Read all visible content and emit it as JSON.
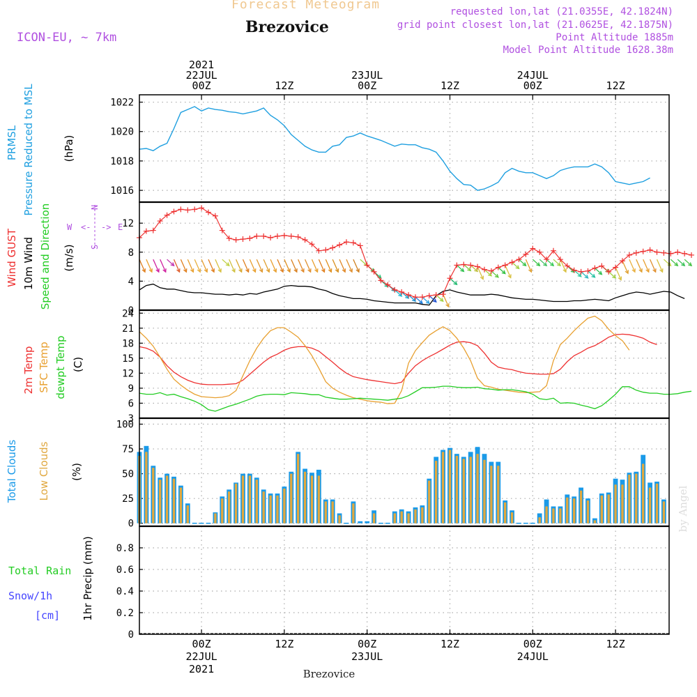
{
  "header": {
    "product": "Forecast Meteogram",
    "location": "Brezovice",
    "model": "ICON-EU, ~ 7km",
    "requested": "requested lon,lat (21.0355E, 42.1824N)",
    "gridpoint": "grid point closest lon,lat (21.0625E, 42.1875N)",
    "point_alt": "Point Altitude 1885m",
    "model_alt": "Model Point Altitude 1628.38m"
  },
  "footer": {
    "location": "Brezovice",
    "credit": "by Angel"
  },
  "colors": {
    "pressure": "#1e9fe0",
    "gust": "#ee3030",
    "wind": "#000000",
    "t2m": "#ee3030",
    "sfc": "#e8a030",
    "dewpt": "#22cc22",
    "total_clouds": "#1a9ae8",
    "low_clouds": "#e0a840",
    "rain": "#22cc22",
    "snow": "#4444ff",
    "header_product": "#f0c890",
    "header_info": "#b050e0"
  },
  "chart_data": {
    "type": "line",
    "x_axis": {
      "start": "21 JUL 2021 15Z",
      "end": "24 JUL 2021 17Z",
      "step_hours": 1,
      "top_ticks": [
        {
          "hour": 9,
          "label": [
            "2021",
            "22JUL",
            "00Z"
          ]
        },
        {
          "hour": 21,
          "label": [
            "12Z"
          ]
        },
        {
          "hour": 33,
          "label": [
            "23JUL",
            "00Z"
          ]
        },
        {
          "hour": 45,
          "label": [
            "12Z"
          ]
        },
        {
          "hour": 57,
          "label": [
            "24JUL",
            "00Z"
          ]
        },
        {
          "hour": 69,
          "label": [
            "12Z"
          ]
        }
      ],
      "bottom_ticks": [
        {
          "hour": 9,
          "label": [
            "00Z",
            "22JUL",
            "2021"
          ]
        },
        {
          "hour": 21,
          "label": [
            "12Z"
          ]
        },
        {
          "hour": 33,
          "label": [
            "00Z",
            "23JUL"
          ]
        },
        {
          "hour": 45,
          "label": [
            "12Z"
          ]
        },
        {
          "hour": 57,
          "label": [
            "00Z",
            "24JUL"
          ]
        },
        {
          "hour": 69,
          "label": [
            "12Z"
          ]
        }
      ]
    },
    "panels": [
      {
        "id": "pressure",
        "labels": [
          "PRMSL",
          "Pressure Reduced to MSL"
        ],
        "unit": "(hPa)",
        "ylim": [
          1015.2,
          1022.5
        ],
        "yticks": [
          1016,
          1018,
          1020,
          1022
        ],
        "series": [
          {
            "name": "PRMSL",
            "values": [
              1018.8,
              1018.85,
              1018.7,
              1019.0,
              1019.2,
              1020.2,
              1021.3,
              1021.5,
              1021.7,
              1021.4,
              1021.6,
              1021.5,
              1021.45,
              1021.35,
              1021.3,
              1021.2,
              1021.3,
              1021.4,
              1021.6,
              1021.1,
              1020.8,
              1020.4,
              1019.8,
              1019.4,
              1019.0,
              1018.75,
              1018.6,
              1018.6,
              1019.0,
              1019.1,
              1019.6,
              1019.7,
              1019.9,
              1019.7,
              1019.55,
              1019.4,
              1019.2,
              1019.0,
              1019.15,
              1019.1,
              1019.1,
              1018.9,
              1018.8,
              1018.6,
              1018.0,
              1017.3,
              1016.8,
              1016.4,
              1016.35,
              1016.0,
              1016.1,
              1016.3,
              1016.55,
              1017.2,
              1017.5,
              1017.3,
              1017.2,
              1017.2,
              1017.0,
              1016.8,
              1017.0,
              1017.35,
              1017.5,
              1017.6,
              1017.6,
              1017.6,
              1017.8,
              1017.6,
              1017.2,
              1016.6,
              1016.5,
              1016.4,
              1016.5,
              1016.6,
              1016.85
            ]
          }
        ]
      },
      {
        "id": "wind",
        "labels": [
          "Wind GUST",
          "10m Wind",
          "Speed and Direction"
        ],
        "unit": "(m/s)",
        "compass": {
          "n": "N",
          "s": "S",
          "e": "E",
          "w": "W"
        },
        "ylim": [
          0,
          14.9
        ],
        "yticks": [
          0,
          4,
          8,
          12
        ],
        "series": [
          {
            "name": "Wind GUST",
            "values": [
              10.0,
              10.9,
              11.0,
              12.3,
              13.1,
              13.6,
              13.9,
              13.8,
              13.9,
              14.1,
              13.5,
              13.0,
              11.0,
              9.9,
              9.7,
              9.8,
              9.9,
              10.2,
              10.2,
              10.0,
              10.2,
              10.3,
              10.2,
              10.1,
              9.7,
              9.1,
              8.2,
              8.3,
              8.6,
              9.0,
              9.4,
              9.3,
              8.9,
              6.2,
              5.3,
              4.1,
              3.5,
              2.8,
              2.5,
              2.1,
              1.8,
              1.8,
              2.0,
              2.1,
              2.2,
              4.4,
              6.2,
              6.3,
              6.2,
              6.0,
              5.6,
              5.4,
              5.9,
              6.2,
              6.6,
              7.0,
              7.7,
              8.5,
              8.0,
              7.0,
              8.2,
              7.0,
              6.1,
              5.5,
              5.3,
              5.4,
              5.8,
              6.1,
              5.3,
              5.9,
              6.8,
              7.6,
              7.9,
              8.1,
              8.3,
              8.0,
              7.9,
              7.8,
              8.0,
              7.8,
              7.6
            ]
          },
          {
            "name": "10m Wind",
            "values": [
              2.8,
              3.4,
              3.6,
              3.1,
              2.9,
              2.9,
              2.7,
              2.5,
              2.4,
              2.4,
              2.3,
              2.2,
              2.2,
              2.1,
              2.2,
              2.1,
              2.3,
              2.2,
              2.5,
              2.7,
              2.9,
              3.3,
              3.4,
              3.3,
              3.3,
              3.2,
              2.9,
              2.7,
              2.3,
              2.0,
              1.8,
              1.6,
              1.6,
              1.5,
              1.3,
              1.2,
              1.1,
              1.0,
              1.0,
              1.0,
              1.0,
              0.8,
              0.7,
              2.0,
              2.6,
              2.8,
              2.5,
              2.3,
              2.1,
              2.1,
              2.1,
              2.2,
              2.1,
              1.9,
              1.7,
              1.6,
              1.5,
              1.5,
              1.4,
              1.3,
              1.2,
              1.2,
              1.2,
              1.3,
              1.3,
              1.4,
              1.5,
              1.4,
              1.3,
              1.7,
              2.0,
              2.3,
              2.5,
              2.4,
              2.2,
              2.4,
              2.6,
              2.5,
              2.0,
              1.6
            ]
          }
        ],
        "arrow_colors": [
          "#e08020",
          "#e8a030",
          "#d020a0",
          "#d020a0",
          "#c030b0",
          "#e06030",
          "#e08020",
          "#e8a030",
          "#e8b040",
          "#e8a030",
          "#e08020",
          "#d8c040",
          "#c0d040",
          "#d0c040",
          "#d8a830",
          "#e08020",
          "#e8a030",
          "#e09830",
          "#e0a030",
          "#e8a030",
          "#e08020",
          "#e09020",
          "#d88020",
          "#e08828",
          "#e09030",
          "#e8a030",
          "#e08020",
          "#e09020",
          "#d89020",
          "#e08828",
          "#e09030",
          "#d08020",
          "#a0d040",
          "#30c050",
          "#20c070",
          "#20c090",
          "#20b0c0",
          "#20b8d0",
          "#20a8d0",
          "#2090d0",
          "#2080e0",
          "#30a0e0",
          "#2050d0",
          "#a0d040",
          "#e0a030",
          "#20b870",
          "#30c050",
          "#80cc40",
          "#c0c040",
          "#d8c040",
          "#a8d040",
          "#60c840",
          "#30c040",
          "#d8c040",
          "#a0d040",
          "#30c040",
          "#e0a030",
          "#30c040",
          "#40c060",
          "#30c850",
          "#a0d040",
          "#d8c040",
          "#30c050",
          "#30c8a0",
          "#30b8c0",
          "#20c0a0",
          "#30c050",
          "#60cc40",
          "#a0d040",
          "#d8c040",
          "#e0a030",
          "#e8b040",
          "#e0a030",
          "#e8a030",
          "#e09030",
          "#d8c040",
          "#c0d040",
          "#40c040",
          "#30c050",
          "#40c040"
        ]
      },
      {
        "id": "temperature",
        "labels": [
          "2m Temp",
          "SFC Temp",
          "dewpt Temp"
        ],
        "unit": "(C)",
        "ylim": [
          3,
          24.6
        ],
        "yticks": [
          3,
          6,
          9,
          12,
          15,
          18,
          21,
          24
        ],
        "series": [
          {
            "name": "2m Temp",
            "values": [
              17.3,
              17.0,
              16.4,
              15.2,
              13.5,
              12.2,
              11.3,
              10.6,
              10.1,
              9.8,
              9.7,
              9.7,
              9.7,
              9.8,
              9.9,
              10.6,
              11.8,
              13.0,
              14.2,
              15.2,
              15.8,
              16.6,
              17.1,
              17.3,
              17.3,
              17.0,
              16.4,
              15.3,
              14.2,
              13.0,
              12.0,
              11.3,
              11.0,
              10.7,
              10.5,
              10.3,
              10.1,
              9.9,
              10.2,
              12.0,
              13.5,
              14.5,
              15.3,
              16.0,
              16.8,
              17.6,
              18.2,
              18.3,
              18.1,
              17.5,
              16.0,
              14.2,
              13.2,
              12.9,
              12.7,
              12.3,
              12.0,
              11.9,
              11.8,
              11.8,
              11.9,
              12.8,
              14.3,
              15.5,
              16.2,
              17.0,
              17.5,
              18.3,
              19.2,
              19.7,
              19.8,
              19.7,
              19.4,
              19.0,
              18.2,
              17.7
            ]
          },
          {
            "name": "SFC Temp",
            "values": [
              20.3,
              19.0,
              17.4,
              15.2,
              12.8,
              10.8,
              9.6,
              8.6,
              7.8,
              7.3,
              7.2,
              7.1,
              7.2,
              7.5,
              8.5,
              11.5,
              14.5,
              17.0,
              19.0,
              20.5,
              21.1,
              21.1,
              20.2,
              19.2,
              17.5,
              15.5,
              13.0,
              10.3,
              9.0,
              8.2,
              7.6,
              7.1,
              6.8,
              6.5,
              6.3,
              6.2,
              5.9,
              6.0,
              8.5,
              14.0,
              16.5,
              18.1,
              19.6,
              20.5,
              21.3,
              20.5,
              19.0,
              17.0,
              14.5,
              11.0,
              9.5,
              9.2,
              8.8,
              8.6,
              8.4,
              8.2,
              8.1,
              8.2,
              8.3,
              9.5,
              14.5,
              17.7,
              19.0,
              20.5,
              21.8,
              23.0,
              23.4,
              22.5,
              20.8,
              19.5,
              18.5,
              16.6
            ]
          },
          {
            "name": "dewpt Temp",
            "values": [
              8.0,
              7.8,
              7.8,
              8.1,
              7.6,
              7.8,
              7.3,
              6.9,
              6.4,
              5.7,
              4.7,
              4.4,
              4.9,
              5.4,
              5.8,
              6.3,
              6.8,
              7.4,
              7.7,
              7.8,
              7.8,
              7.7,
              8.1,
              8.0,
              7.9,
              7.7,
              7.7,
              7.2,
              7.0,
              6.8,
              6.8,
              6.9,
              7.0,
              6.9,
              6.8,
              6.7,
              6.6,
              6.8,
              7.0,
              7.5,
              8.3,
              9.1,
              9.1,
              9.2,
              9.4,
              9.4,
              9.2,
              9.1,
              9.1,
              9.2,
              8.9,
              8.8,
              8.6,
              8.7,
              8.7,
              8.5,
              8.3,
              7.8,
              6.9,
              6.7,
              7.0,
              6.0,
              6.1,
              6.0,
              5.6,
              5.3,
              4.9,
              5.5,
              6.6,
              7.8,
              9.3,
              9.3,
              8.6,
              8.2,
              8.0,
              8.0,
              7.8,
              7.8,
              7.9,
              8.2,
              8.4
            ]
          }
        ]
      },
      {
        "id": "clouds",
        "labels": [
          "Total Clouds",
          "Low Clouds"
        ],
        "unit": "(%)",
        "ylim": [
          -3,
          106
        ],
        "yticks": [
          0,
          25,
          50,
          75,
          100
        ],
        "series": [
          {
            "name": "Total Clouds",
            "values": [
              72,
              78,
              58,
              46,
              50,
              47,
              38,
              20,
              0,
              0,
              0,
              11,
              27,
              34,
              41,
              50,
              50,
              46,
              34,
              30,
              30,
              37,
              52,
              72,
              55,
              51,
              54,
              24,
              24,
              10,
              0,
              22,
              2,
              2,
              13,
              0,
              0,
              12,
              14,
              12,
              16,
              18,
              45,
              67,
              74,
              76,
              70,
              67,
              72,
              77,
              70,
              62,
              62,
              23,
              13,
              0,
              0,
              0,
              10,
              24,
              17,
              17,
              29,
              27,
              36,
              25,
              5,
              30,
              31,
              45,
              44,
              51,
              52,
              69,
              41,
              42,
              24
            ]
          },
          {
            "name": "Low Clouds",
            "values": [
              68,
              72,
              56,
              44,
              48,
              45,
              36,
              18,
              0,
              0,
              0,
              10,
              25,
              32,
              40,
              48,
              48,
              44,
              32,
              28,
              28,
              35,
              50,
              70,
              52,
              48,
              48,
              22,
              22,
              8,
              0,
              20,
              0,
              0,
              10,
              0,
              0,
              10,
              12,
              10,
              14,
              16,
              43,
              63,
              72,
              74,
              68,
              65,
              67,
              70,
              64,
              58,
              58,
              21,
              11,
              0,
              0,
              0,
              6,
              17,
              15,
              15,
              26,
              25,
              33,
              23,
              3,
              28,
              29,
              39,
              39,
              49,
              50,
              60,
              36,
              40,
              22
            ]
          }
        ]
      },
      {
        "id": "precip",
        "labels": [
          "Total  Rain",
          "Snow/1h",
          "[cm]"
        ],
        "unit": "1hr Precip (mm)",
        "ylim": [
          0,
          1.0
        ],
        "yticks": [
          0,
          0.2,
          0.4,
          0.6,
          0.8
        ],
        "series": [
          {
            "name": "Total Rain",
            "values": [
              0
            ]
          }
        ]
      }
    ]
  }
}
